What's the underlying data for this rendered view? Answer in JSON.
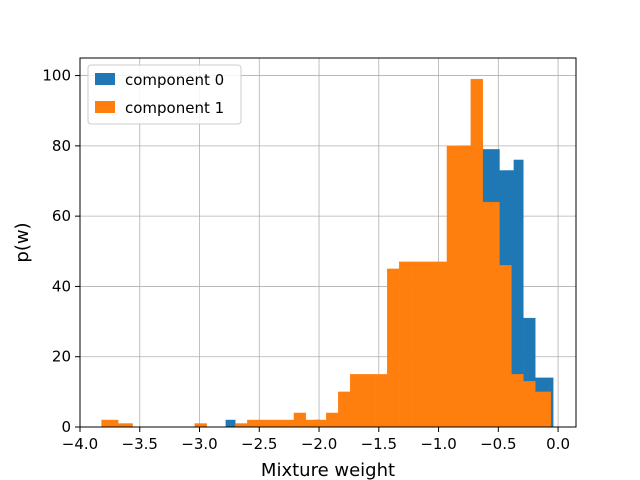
{
  "chart_data": {
    "type": "bar",
    "histogram": true,
    "xlabel": "Mixture weight",
    "ylabel": "p(w)",
    "xlim": [
      -4.0,
      0.15
    ],
    "ylim": [
      0,
      105
    ],
    "grid": true,
    "legend_position": "top-left",
    "xticks": [
      -4.0,
      -3.5,
      -3.0,
      -2.5,
      -2.0,
      -1.5,
      -1.0,
      -0.5,
      0.0
    ],
    "xtick_labels": [
      "−4.0",
      "−3.5",
      "−3.0",
      "−2.5",
      "−2.0",
      "−1.5",
      "−1.0",
      "−0.5",
      "0.0"
    ],
    "yticks": [
      0,
      20,
      40,
      60,
      80,
      100
    ],
    "ytick_labels": [
      "0",
      "20",
      "40",
      "60",
      "80",
      "100"
    ],
    "series": [
      {
        "name": "component 0",
        "color": "#1f77b4",
        "bins": [
          {
            "x0": -2.78,
            "x1": -2.74,
            "count": 2
          },
          {
            "x0": -2.74,
            "x1": -2.7,
            "count": 2
          },
          {
            "x0": -2.04,
            "x1": -1.99,
            "count": 2
          },
          {
            "x0": -0.83,
            "x1": -0.68,
            "count": 80
          },
          {
            "x0": -0.68,
            "x1": -0.63,
            "count": 82
          },
          {
            "x0": -0.63,
            "x1": -0.49,
            "count": 79
          },
          {
            "x0": -0.49,
            "x1": -0.37,
            "count": 73
          },
          {
            "x0": -0.37,
            "x1": -0.29,
            "count": 76
          },
          {
            "x0": -0.29,
            "x1": -0.19,
            "count": 31
          },
          {
            "x0": -0.19,
            "x1": -0.06,
            "count": 14
          },
          {
            "x0": -0.06,
            "x1": -0.04,
            "count": 14
          }
        ]
      },
      {
        "name": "component 1",
        "color": "#ff7f0e",
        "bins": [
          {
            "x0": -3.82,
            "x1": -3.68,
            "count": 2
          },
          {
            "x0": -3.68,
            "x1": -3.56,
            "count": 1
          },
          {
            "x0": -3.04,
            "x1": -2.94,
            "count": 1
          },
          {
            "x0": -2.7,
            "x1": -2.6,
            "count": 1
          },
          {
            "x0": -2.6,
            "x1": -2.4,
            "count": 2
          },
          {
            "x0": -2.4,
            "x1": -2.21,
            "count": 2
          },
          {
            "x0": -2.21,
            "x1": -2.11,
            "count": 4
          },
          {
            "x0": -2.11,
            "x1": -1.94,
            "count": 2
          },
          {
            "x0": -1.94,
            "x1": -1.84,
            "count": 4
          },
          {
            "x0": -1.84,
            "x1": -1.74,
            "count": 10
          },
          {
            "x0": -1.74,
            "x1": -1.53,
            "count": 15
          },
          {
            "x0": -1.53,
            "x1": -1.43,
            "count": 15
          },
          {
            "x0": -1.43,
            "x1": -1.33,
            "count": 45
          },
          {
            "x0": -1.33,
            "x1": -1.23,
            "count": 47
          },
          {
            "x0": -1.23,
            "x1": -0.93,
            "count": 47
          },
          {
            "x0": -0.93,
            "x1": -0.83,
            "count": 80
          },
          {
            "x0": -0.83,
            "x1": -0.73,
            "count": 80
          },
          {
            "x0": -0.73,
            "x1": -0.63,
            "count": 99
          },
          {
            "x0": -0.63,
            "x1": -0.49,
            "count": 64
          },
          {
            "x0": -0.49,
            "x1": -0.39,
            "count": 46
          },
          {
            "x0": -0.39,
            "x1": -0.29,
            "count": 15
          },
          {
            "x0": -0.29,
            "x1": -0.19,
            "count": 13
          },
          {
            "x0": -0.19,
            "x1": -0.06,
            "count": 10
          }
        ]
      }
    ]
  }
}
